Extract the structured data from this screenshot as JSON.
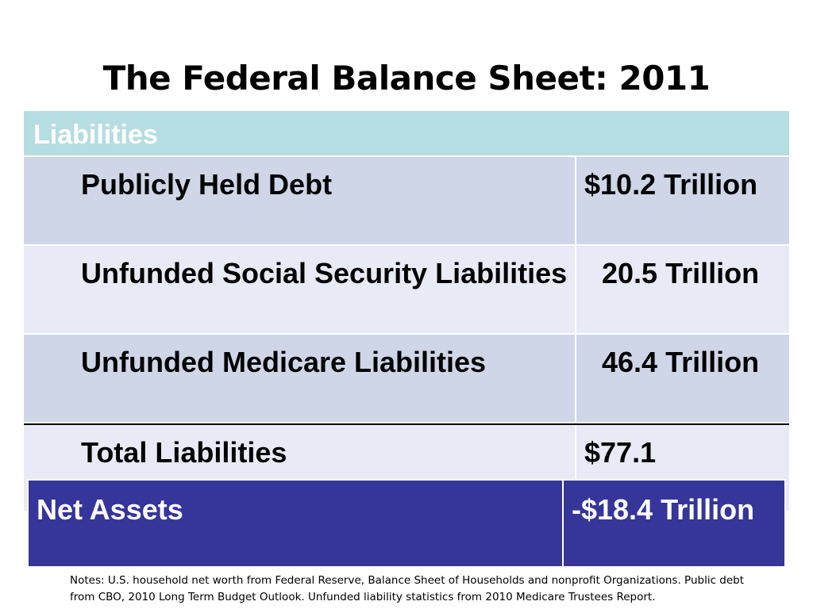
{
  "title": "The Federal Balance Sheet: 2011",
  "table": {
    "header": "Liabilities",
    "rows": [
      {
        "label": "Publicly Held Debt",
        "value": "$10.2 Trillion"
      },
      {
        "label": "Unfunded Social Security Liabilities",
        "value": "20.5 Trillion"
      },
      {
        "label": "Unfunded Medicare Liabilities",
        "value": "46.4 Trillion"
      },
      {
        "label": "Total Liabilities",
        "value": "$77.1"
      }
    ],
    "net_assets": {
      "label": "Net Assets",
      "value": "-$18.4 Trillion"
    }
  },
  "notes": "Notes: U.S. household net worth from Federal Reserve, Balance Sheet of Households and nonprofit Organizations.  Public debt from CBO, 2010 Long Term Budget Outlook.  Unfunded liability statistics from 2010 Medicare Trustees Report.",
  "colors": {
    "header_bg": "#b6dde1",
    "row_dark": "#cfd6e8",
    "row_light": "#e8ebf5",
    "net_assets_bg": "#35359a"
  }
}
